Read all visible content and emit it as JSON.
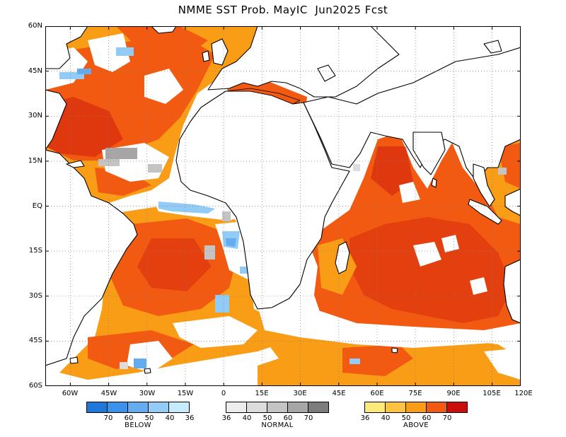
{
  "title": "NMME SST Prob. MayIC  Jun2025 Fcst",
  "lat_labels": [
    "60N",
    "45N",
    "30N",
    "15N",
    "EQ",
    "15S",
    "30S",
    "45S",
    "60S"
  ],
  "lon_labels": [
    "60W",
    "45W",
    "30W",
    "15W",
    "0",
    "15E",
    "30E",
    "45E",
    "60E",
    "75E",
    "90E",
    "105E",
    "120E"
  ],
  "legend": {
    "below": {
      "caption": "BELOW",
      "ticks": [
        "70",
        "60",
        "50",
        "40",
        "36"
      ],
      "colors": [
        "#1f78d9",
        "#3a92ea",
        "#63acef",
        "#92cbf6",
        "#c5ecf9"
      ]
    },
    "normal": {
      "caption": "NORMAL",
      "ticks": [
        "36",
        "40",
        "50",
        "60",
        "70"
      ],
      "colors": [
        "#ececec",
        "#dcdcdc",
        "#c4c4c4",
        "#a6a6a6",
        "#7c7c7c"
      ]
    },
    "above": {
      "caption": "ABOVE",
      "ticks": [
        "36",
        "40",
        "50",
        "60",
        "70"
      ],
      "colors": [
        "#fde87a",
        "#fbc340",
        "#f99c16",
        "#f25a12",
        "#c90f0c"
      ]
    }
  }
}
